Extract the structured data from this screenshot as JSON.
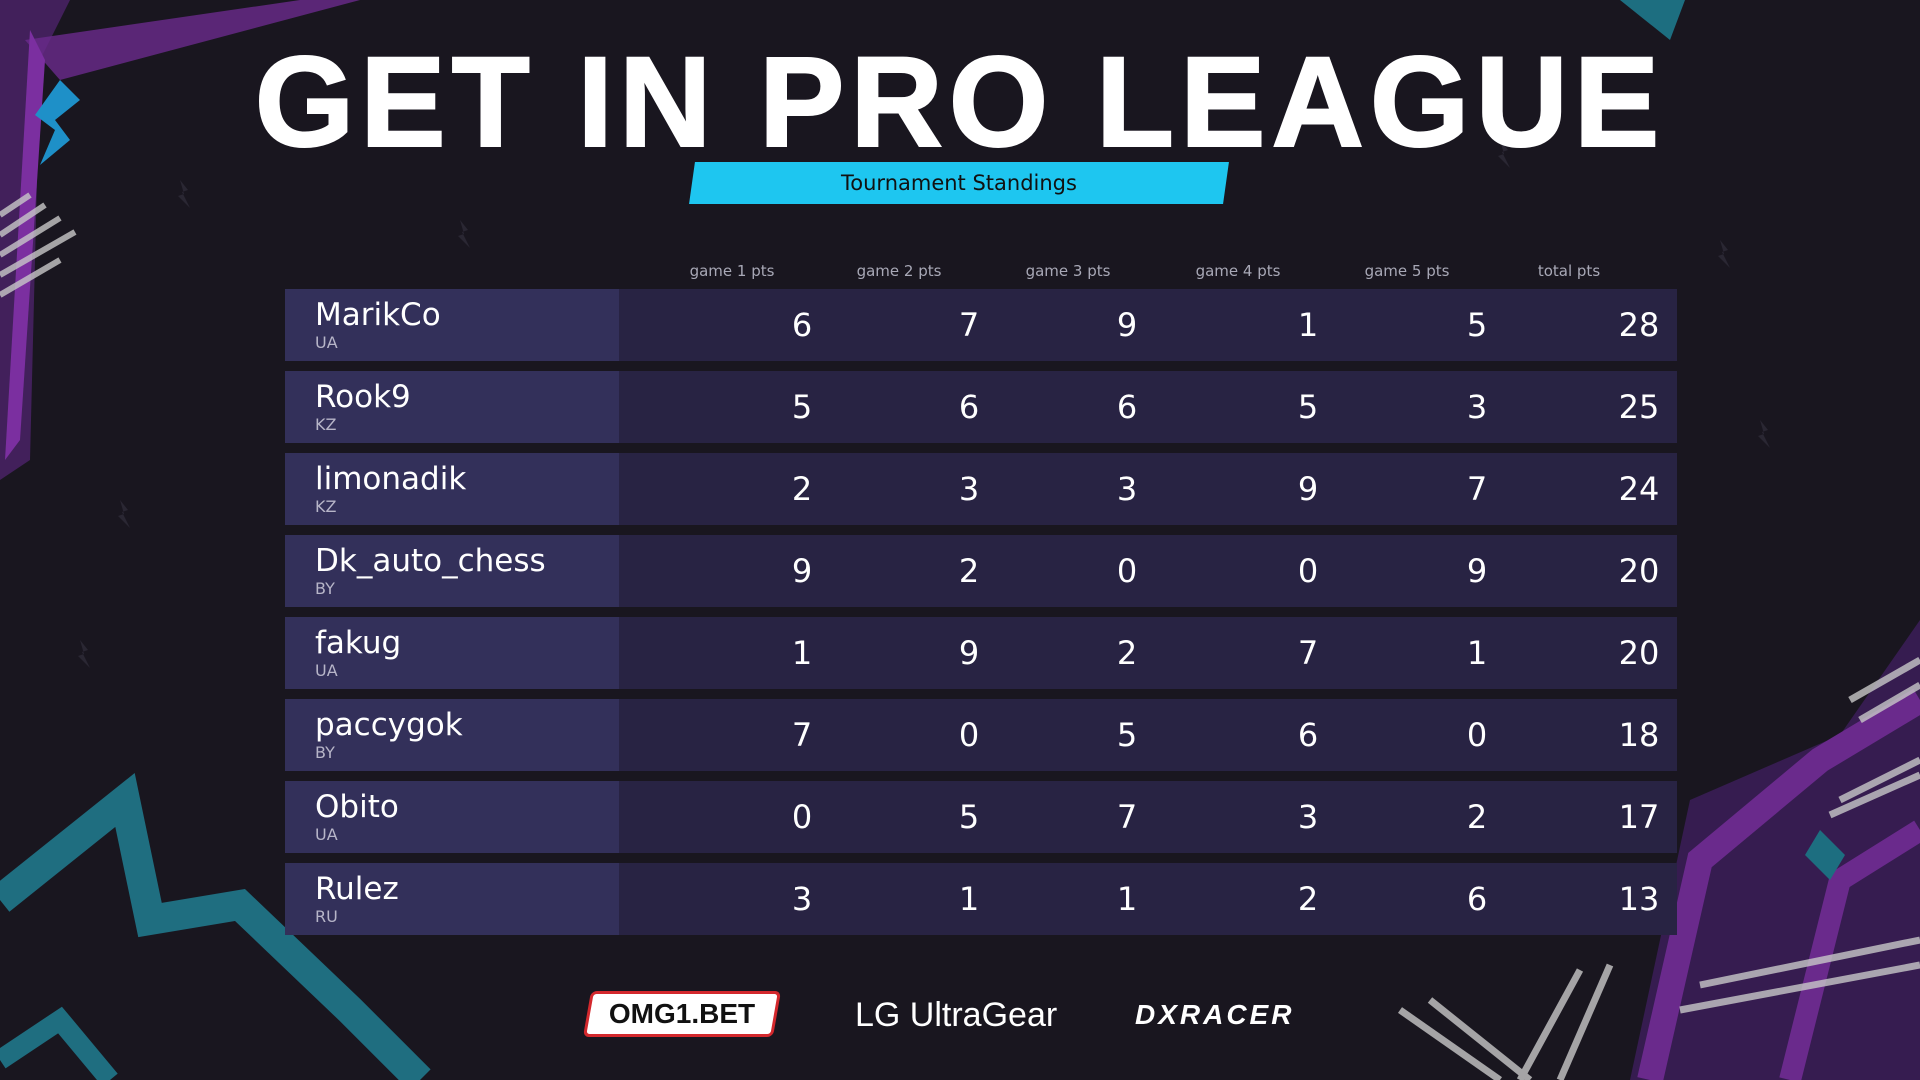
{
  "header": {
    "title": "GET IN PRO LEAGUE",
    "subtitle": "Tournament Standings"
  },
  "columns": [
    "game 1 pts",
    "game 2 pts",
    "game 3 pts",
    "game 4 pts",
    "game 5 pts",
    "total pts"
  ],
  "rows": [
    {
      "player": "MarikCo",
      "country": "UA",
      "scores": [
        "6",
        "7",
        "9",
        "1",
        "5",
        "28"
      ]
    },
    {
      "player": "Rook9",
      "country": "KZ",
      "scores": [
        "5",
        "6",
        "6",
        "5",
        "3",
        "25"
      ]
    },
    {
      "player": "limonadik",
      "country": "KZ",
      "scores": [
        "2",
        "3",
        "3",
        "9",
        "7",
        "24"
      ]
    },
    {
      "player": "Dk_auto_chess",
      "country": "BY",
      "scores": [
        "9",
        "2",
        "0",
        "0",
        "9",
        "20"
      ]
    },
    {
      "player": "fakug",
      "country": "UA",
      "scores": [
        "1",
        "9",
        "2",
        "7",
        "1",
        "20"
      ]
    },
    {
      "player": "paccygok",
      "country": "BY",
      "scores": [
        "7",
        "0",
        "5",
        "6",
        "0",
        "18"
      ]
    },
    {
      "player": "Obito",
      "country": "UA",
      "scores": [
        "0",
        "5",
        "7",
        "3",
        "2",
        "17"
      ]
    },
    {
      "player": "Rulez",
      "country": "RU",
      "scores": [
        "3",
        "1",
        "1",
        "2",
        "6",
        "13"
      ]
    }
  ],
  "sponsors": {
    "omg": "OMG1.BET",
    "lg": "LG UltraGear",
    "dxracer": "DXRACER"
  },
  "colors": {
    "background": "#19161f",
    "accent_cyan": "#1ec6f0",
    "accent_purple": "#6a2a8c",
    "accent_teal": "#1d6e80",
    "row_bg": "#282343",
    "name_cell_bg": "#33305a"
  }
}
